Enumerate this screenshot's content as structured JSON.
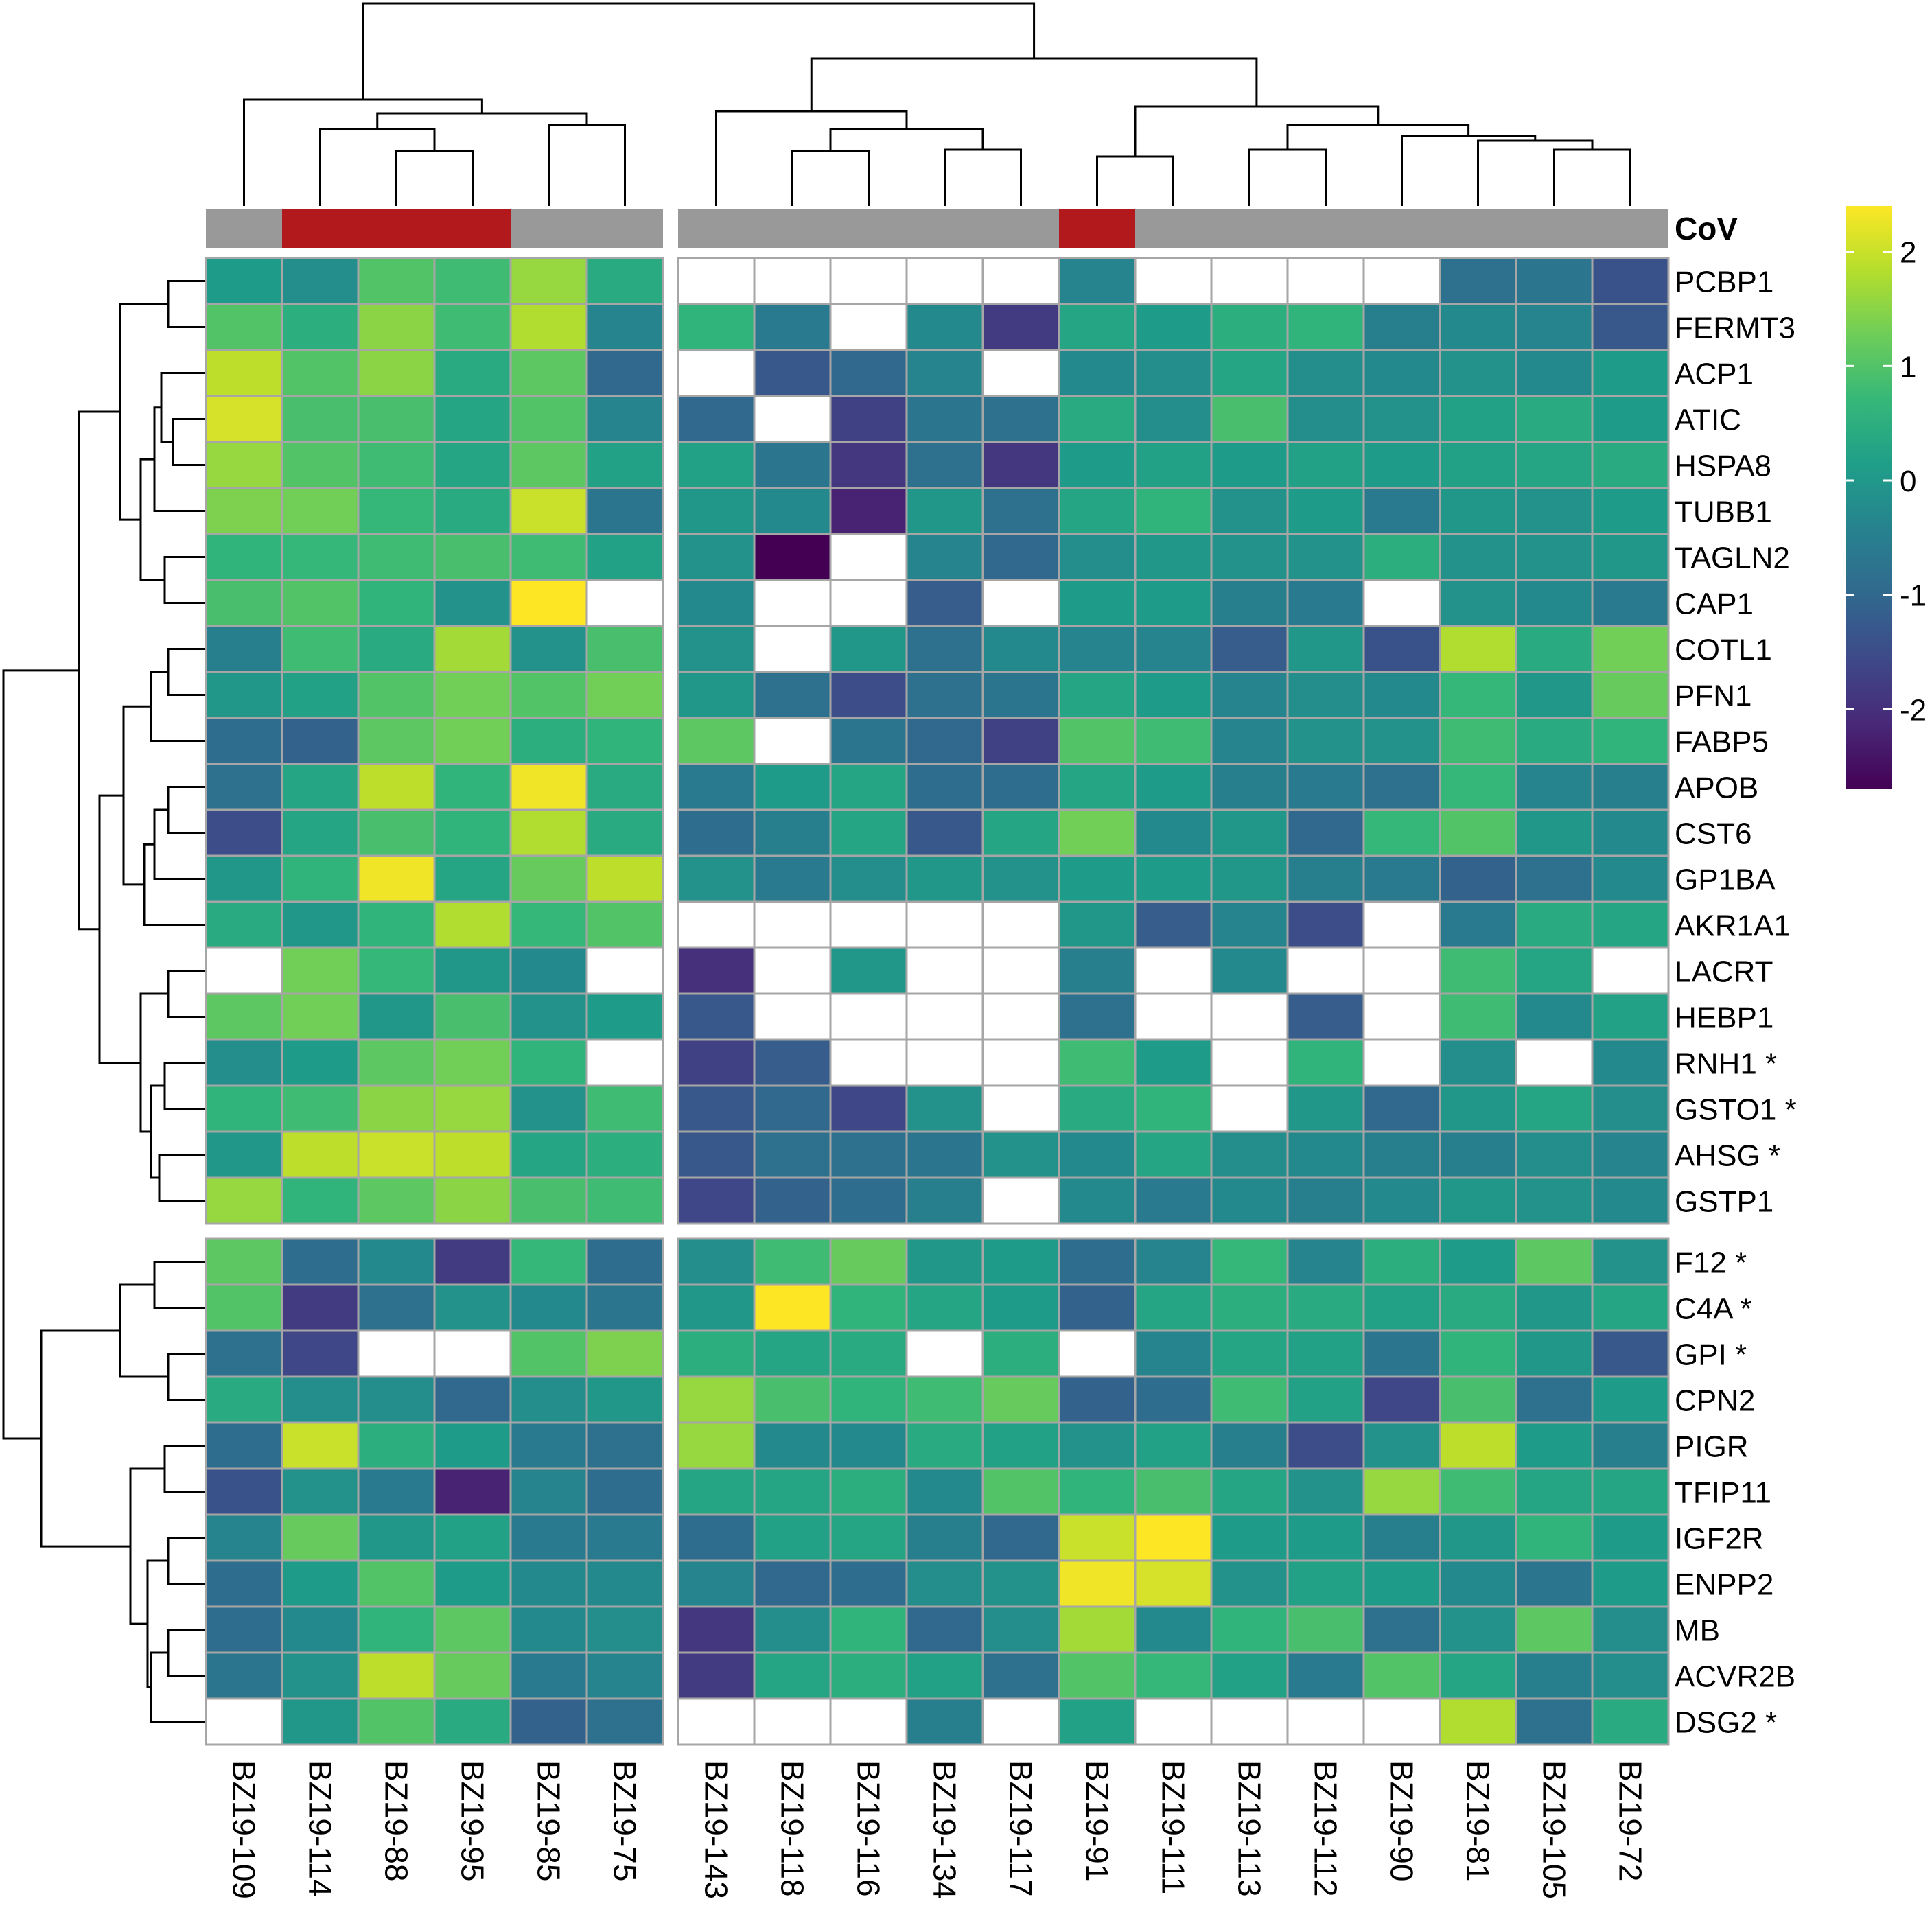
{
  "chart_data": {
    "type": "heatmap",
    "annotation_label": "CoV",
    "annotation_colors": {
      "CoV": "#B2191D",
      "other": "#999999"
    },
    "colorscale": {
      "name": "viridis",
      "range": [
        -2.7,
        2.4
      ],
      "ticks": [
        2,
        1,
        0,
        -1,
        -2
      ],
      "tick_labels": [
        "2",
        "1",
        "0",
        "-1",
        "-2"
      ],
      "stops": [
        "#440154",
        "#482878",
        "#3E4989",
        "#31688E",
        "#26828E",
        "#1F9E89",
        "#35B779",
        "#6DCD59",
        "#B4DE2C",
        "#FDE725"
      ]
    },
    "grid_line_color": "#A6A6A6",
    "missing_color": "#FFFFFF",
    "column_groups": [
      6,
      13
    ],
    "row_groups": [
      21,
      11
    ],
    "columns": [
      "BZ19-109",
      "BZ19-114",
      "BZ19-88",
      "BZ19-95",
      "BZ19-85",
      "BZ19-75",
      "BZ19-143",
      "BZ19-118",
      "BZ19-116",
      "BZ19-134",
      "BZ19-117",
      "BZ19-91",
      "BZ19-111",
      "BZ19-113",
      "BZ19-112",
      "BZ19-90",
      "BZ19-81",
      "BZ19-105",
      "BZ19-72"
    ],
    "column_cov": [
      false,
      true,
      true,
      true,
      false,
      false,
      false,
      false,
      false,
      false,
      false,
      true,
      false,
      false,
      false,
      false,
      false,
      false,
      false
    ],
    "rows": [
      "PCBP1",
      "FERMT3",
      "ACP1",
      "ATIC",
      "HSPA8",
      "TUBB1",
      "TAGLN2",
      "CAP1",
      "COTL1",
      "PFN1",
      "FABP5",
      "APOB",
      "CST6",
      "GP1BA",
      "AKR1A1",
      "LACRT",
      "HEBP1",
      "RNH1 *",
      "GSTO1 *",
      "AHSG *",
      "GSTP1",
      "F12 *",
      "C4A *",
      "GPI *",
      "CPN2",
      "PIGR",
      "TFIP11",
      "IGF2R",
      "ENPP2",
      "MB",
      "ACVR2B",
      "DSG2 *"
    ],
    "values": [
      [
        0.1,
        -0.2,
        1.0,
        0.8,
        1.6,
        0.4,
        null,
        null,
        null,
        null,
        null,
        -0.4,
        null,
        null,
        null,
        null,
        -0.8,
        -0.7,
        -1.4
      ],
      [
        1.0,
        0.5,
        1.5,
        0.8,
        1.8,
        -0.4,
        0.6,
        -0.6,
        null,
        -0.3,
        -1.8,
        0.3,
        0.1,
        0.5,
        0.6,
        -0.5,
        -0.3,
        -0.4,
        -1.3
      ],
      [
        1.9,
        1.0,
        1.5,
        0.4,
        1.1,
        -1.0,
        null,
        -1.3,
        -1.0,
        -0.4,
        null,
        -0.3,
        -0.2,
        0.3,
        -0.2,
        -0.3,
        -0.1,
        -0.3,
        0.1
      ],
      [
        2.1,
        0.9,
        0.9,
        0.3,
        1.0,
        -0.4,
        -1.0,
        null,
        -1.7,
        -0.7,
        -0.8,
        0.4,
        -0.2,
        0.9,
        -0.2,
        -0.1,
        0.2,
        0.4,
        0.1
      ],
      [
        1.6,
        1.0,
        0.8,
        0.3,
        1.1,
        0.2,
        0.2,
        -0.7,
        -1.9,
        -0.8,
        -1.9,
        0.1,
        0.2,
        0.1,
        0.2,
        0.1,
        0.2,
        0.3,
        0.4
      ],
      [
        1.4,
        1.3,
        0.7,
        0.4,
        2.0,
        -0.7,
        0.0,
        -0.3,
        -2.2,
        0.0,
        -0.8,
        0.3,
        0.6,
        -0.1,
        0.1,
        -0.6,
        0.0,
        -0.1,
        0.1
      ],
      [
        0.6,
        0.7,
        0.8,
        0.9,
        0.8,
        0.2,
        -0.1,
        -2.7,
        null,
        -0.4,
        -1.0,
        -0.2,
        0.0,
        -0.1,
        -0.1,
        0.5,
        -0.1,
        -0.1,
        0.0
      ],
      [
        0.9,
        1.0,
        0.6,
        -0.1,
        2.4,
        null,
        -0.3,
        null,
        null,
        -1.2,
        null,
        0.1,
        0.1,
        -0.5,
        -0.6,
        null,
        -0.1,
        -0.3,
        -0.6
      ],
      [
        -0.5,
        0.8,
        0.4,
        1.7,
        -0.1,
        0.9,
        -0.1,
        null,
        0.0,
        -0.8,
        -0.3,
        -0.4,
        -0.4,
        -1.2,
        0.0,
        -1.4,
        1.8,
        0.4,
        1.3
      ],
      [
        0.0,
        0.2,
        1.0,
        1.3,
        1.0,
        1.3,
        0.0,
        -0.8,
        -1.5,
        -0.8,
        -0.7,
        0.3,
        0.1,
        -0.4,
        -0.2,
        -0.3,
        0.7,
        0.0,
        1.2
      ],
      [
        -0.9,
        -1.1,
        1.1,
        1.3,
        0.5,
        0.6,
        1.1,
        null,
        -0.7,
        -1.0,
        -1.7,
        1.0,
        0.8,
        -0.4,
        -0.1,
        -0.1,
        0.8,
        0.4,
        0.6
      ],
      [
        -0.8,
        0.3,
        1.9,
        0.6,
        2.3,
        0.4,
        -0.6,
        0.1,
        0.3,
        -0.9,
        -0.9,
        0.3,
        0.1,
        -0.5,
        -0.6,
        -0.8,
        0.7,
        -0.4,
        -0.5
      ],
      [
        -1.5,
        0.3,
        0.9,
        0.6,
        1.8,
        0.4,
        -0.9,
        -0.5,
        0.3,
        -1.3,
        0.3,
        1.3,
        -0.3,
        0.0,
        -1.0,
        0.7,
        1.0,
        0.0,
        -0.3
      ],
      [
        0.0,
        0.6,
        2.3,
        0.3,
        1.2,
        1.9,
        -0.1,
        -0.6,
        -0.2,
        0.0,
        -0.1,
        0.1,
        0.1,
        0.0,
        -0.5,
        -0.6,
        -1.1,
        -0.8,
        -0.3
      ],
      [
        0.4,
        0.0,
        0.6,
        1.8,
        0.7,
        1.0,
        null,
        null,
        null,
        null,
        null,
        0.0,
        -1.2,
        -0.4,
        -1.5,
        null,
        -0.6,
        0.4,
        0.3
      ],
      [
        null,
        1.3,
        0.7,
        0.0,
        -0.3,
        null,
        -2.0,
        null,
        0.0,
        null,
        null,
        -0.5,
        null,
        -0.3,
        null,
        null,
        0.8,
        0.3,
        null
      ],
      [
        1.1,
        1.3,
        0.0,
        0.9,
        -0.1,
        0.1,
        -1.3,
        null,
        null,
        null,
        null,
        -0.8,
        null,
        null,
        -1.2,
        null,
        0.8,
        -0.3,
        0.2
      ],
      [
        -0.2,
        0.1,
        1.1,
        1.3,
        0.6,
        null,
        -1.7,
        -1.2,
        null,
        null,
        null,
        0.8,
        0.1,
        null,
        0.6,
        null,
        -0.2,
        null,
        -0.3
      ],
      [
        0.6,
        0.8,
        1.5,
        1.6,
        -0.1,
        0.8,
        -1.3,
        -1.0,
        -1.6,
        -0.1,
        null,
        0.4,
        0.6,
        null,
        0.0,
        -1.0,
        0.0,
        0.3,
        -0.2
      ],
      [
        0.0,
        1.9,
        2.0,
        1.9,
        0.3,
        0.5,
        -1.3,
        -0.8,
        -0.8,
        -0.7,
        -0.1,
        -0.3,
        0.3,
        -0.2,
        -0.3,
        -0.5,
        -0.5,
        -0.2,
        -0.4
      ],
      [
        1.6,
        0.6,
        1.1,
        1.5,
        0.9,
        0.8,
        -1.6,
        -1.1,
        -0.9,
        -0.5,
        null,
        -0.3,
        -0.6,
        -0.3,
        -0.5,
        -0.3,
        0.0,
        -0.1,
        -0.3
      ],
      [
        1.1,
        -0.9,
        -0.3,
        -1.8,
        0.7,
        -0.9,
        -0.2,
        0.8,
        1.2,
        0.0,
        0.1,
        -0.9,
        -0.4,
        0.7,
        -0.4,
        0.5,
        0.1,
        1.1,
        -0.1
      ],
      [
        1.0,
        -1.8,
        -0.8,
        -0.1,
        -0.3,
        -0.7,
        0.0,
        2.4,
        0.6,
        0.3,
        0.1,
        -1.1,
        0.3,
        0.5,
        0.4,
        0.2,
        0.4,
        0.0,
        0.3
      ],
      [
        -0.8,
        -1.6,
        null,
        null,
        1.0,
        1.4,
        0.5,
        0.3,
        0.4,
        null,
        0.5,
        null,
        -0.4,
        0.3,
        0.2,
        -0.7,
        0.6,
        0.0,
        -1.3
      ],
      [
        0.4,
        -0.2,
        -0.2,
        -1.0,
        -0.2,
        0.0,
        1.6,
        0.9,
        0.6,
        0.8,
        1.2,
        -1.1,
        -0.9,
        0.8,
        0.2,
        -1.6,
        0.9,
        -0.8,
        0.1
      ],
      [
        -0.9,
        2.0,
        0.5,
        0.1,
        -0.6,
        -0.8,
        1.6,
        -0.3,
        -0.3,
        0.4,
        0.2,
        -0.1,
        0.2,
        -0.5,
        -1.5,
        -0.1,
        1.9,
        0.1,
        -0.5
      ],
      [
        -1.4,
        -0.1,
        -0.6,
        -2.2,
        -0.4,
        -0.9,
        0.3,
        0.3,
        0.5,
        -0.3,
        1.0,
        0.6,
        0.9,
        0.3,
        -0.1,
        1.6,
        0.8,
        0.3,
        0.3
      ],
      [
        -0.4,
        1.2,
        0.0,
        0.2,
        -0.6,
        -0.6,
        -0.9,
        0.2,
        0.3,
        -0.5,
        -1.0,
        2.0,
        2.4,
        0.1,
        0.1,
        -0.5,
        0.0,
        0.6,
        0.1
      ],
      [
        -0.9,
        0.1,
        1.0,
        0.1,
        -0.3,
        -0.3,
        -0.4,
        -1.0,
        -0.9,
        -0.2,
        -0.1,
        2.3,
        2.1,
        -0.1,
        0.2,
        0.1,
        -0.3,
        -0.7,
        0.1
      ],
      [
        -0.9,
        -0.3,
        0.6,
        1.1,
        -0.3,
        -0.2,
        -1.9,
        -0.2,
        0.6,
        -1.0,
        -0.2,
        1.7,
        -0.3,
        0.6,
        0.9,
        -0.8,
        -0.1,
        1.1,
        -0.2
      ],
      [
        -0.7,
        -0.1,
        1.9,
        1.2,
        -0.6,
        -0.4,
        -1.8,
        0.3,
        0.5,
        0.2,
        -0.8,
        1.0,
        0.7,
        0.2,
        -0.6,
        1.0,
        0.3,
        -0.5,
        -0.2
      ],
      [
        null,
        0.0,
        1.0,
        0.4,
        -1.1,
        -0.8,
        null,
        null,
        null,
        -0.5,
        null,
        0.2,
        null,
        null,
        null,
        null,
        1.8,
        -0.8,
        0.4
      ]
    ]
  }
}
